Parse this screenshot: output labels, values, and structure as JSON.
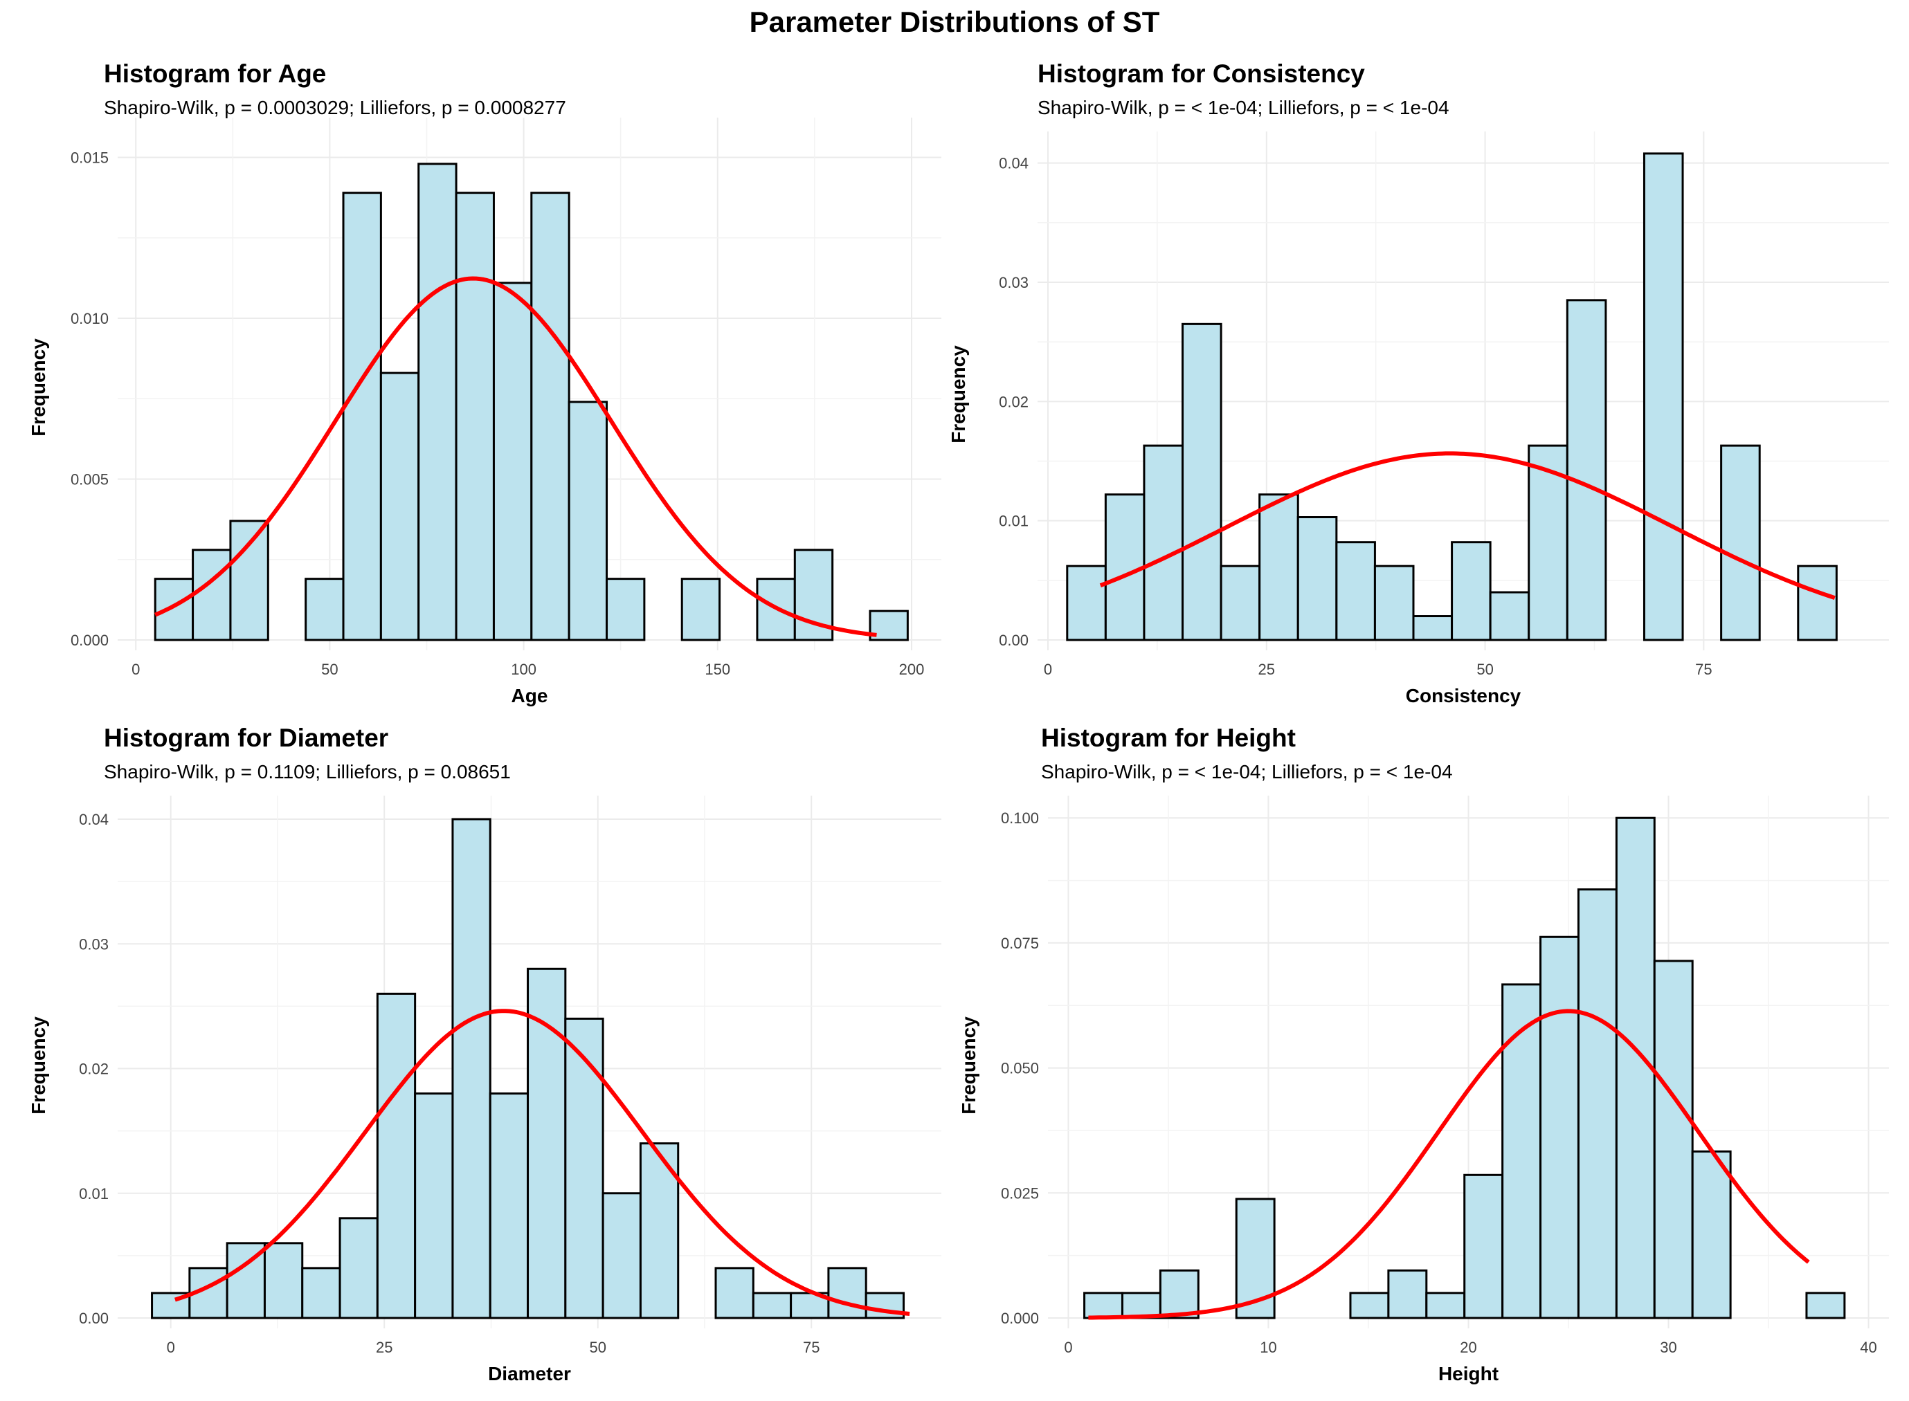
{
  "title": "Parameter Distributions of ST",
  "colors": {
    "bar_fill": "#bde3ee",
    "bar_stroke": "#000000",
    "curve": "#ff0000",
    "grid": "#ebebeb"
  },
  "chart_data": [
    {
      "type": "bar",
      "title": "Histogram for Age",
      "subtitle": "Shapiro-Wilk, p = 0.0003029; Lilliefors, p = 0.0008277",
      "xlabel": "Age",
      "ylabel": "Frequency",
      "xlim": [
        -2,
        205
      ],
      "ylim": [
        0,
        0.0157
      ],
      "xticks": [
        0,
        50,
        100,
        150,
        200
      ],
      "xtick_labels": [
        "0",
        "50",
        "100",
        "150",
        "200"
      ],
      "yticks": [
        0,
        0.005,
        0.01,
        0.015
      ],
      "ytick_labels": [
        "0.000",
        "0.005",
        "0.010",
        "0.015"
      ],
      "bin_start": 5,
      "bin_width": 9.7,
      "values": [
        0.0019,
        0.0028,
        0.0037,
        0,
        0.0019,
        0.0139,
        0.0083,
        0.0148,
        0.0139,
        0.0111,
        0.0139,
        0.0074,
        0.0019,
        0,
        0.0019,
        0,
        0.0019,
        0.0028,
        0,
        0.0009
      ],
      "curve": {
        "mean": 87,
        "sd": 35.5,
        "range": [
          5,
          191
        ]
      }
    },
    {
      "type": "bar",
      "title": "Histogram for Consistency",
      "subtitle": "Shapiro-Wilk, p = < 1e-04; Lilliefors, p = < 1e-04",
      "xlabel": "Consistency",
      "ylabel": "Frequency",
      "xlim": [
        0,
        95
      ],
      "ylim": [
        0,
        0.0412
      ],
      "xticks": [
        0,
        25,
        50,
        75
      ],
      "xtick_labels": [
        "0",
        "25",
        "50",
        "75"
      ],
      "yticks": [
        0,
        0.01,
        0.02,
        0.03,
        0.04
      ],
      "ytick_labels": [
        "0.00",
        "0.01",
        "0.02",
        "0.03",
        "0.04"
      ],
      "bin_start": 2.2,
      "bin_width": 4.4,
      "values": [
        0.0062,
        0.0122,
        0.0163,
        0.0265,
        0.0062,
        0.0122,
        0.0103,
        0.0082,
        0.0062,
        0.002,
        0.0082,
        0.004,
        0.0163,
        0.0285,
        0,
        0.0408,
        0,
        0.0163,
        0,
        0.0062
      ],
      "curve": {
        "mean": 46,
        "sd": 25.5,
        "range": [
          6,
          90
        ]
      }
    },
    {
      "type": "bar",
      "title": "Histogram for Diameter",
      "subtitle": "Shapiro-Wilk, p = 0.1109; Lilliefors, p = 0.08651",
      "xlabel": "Diameter",
      "ylabel": "Frequency",
      "xlim": [
        -5,
        89
      ],
      "ylim": [
        0,
        0.0405
      ],
      "xticks": [
        0,
        25,
        50,
        75
      ],
      "xtick_labels": [
        "0",
        "25",
        "50",
        "75"
      ],
      "yticks": [
        0,
        0.01,
        0.02,
        0.03,
        0.04
      ],
      "ytick_labels": [
        "0.00",
        "0.01",
        "0.02",
        "0.03",
        "0.04"
      ],
      "bin_start": -2.2,
      "bin_width": 4.4,
      "values": [
        0.002,
        0.004,
        0.006,
        0.006,
        0.004,
        0.008,
        0.026,
        0.018,
        0.04,
        0.018,
        0.028,
        0.024,
        0.01,
        0.014,
        0,
        0.004,
        0.002,
        0.002,
        0.004,
        0.002
      ],
      "curve": {
        "mean": 39,
        "sd": 16.2,
        "range": [
          0.5,
          86.5
        ]
      }
    },
    {
      "type": "bar",
      "title": "Histogram for Height",
      "subtitle": "Shapiro-Wilk, p = < 1e-04; Lilliefors, p = < 1e-04",
      "xlabel": "Height",
      "ylabel": "Frequency",
      "xlim": [
        -0.5,
        40.5
      ],
      "ylim": [
        0,
        0.101
      ],
      "xticks": [
        0,
        10,
        20,
        30,
        40
      ],
      "xtick_labels": [
        "0",
        "10",
        "20",
        "30",
        "40"
      ],
      "yticks": [
        0,
        0.025,
        0.05,
        0.075,
        0.1
      ],
      "ytick_labels": [
        "0.000",
        "0.025",
        "0.050",
        "0.075",
        "0.100"
      ],
      "bin_start": 0.8,
      "bin_width": 1.9,
      "values": [
        0.005,
        0.005,
        0.0095,
        0,
        0.0238,
        0,
        0,
        0.005,
        0.0095,
        0.005,
        0.0286,
        0.0667,
        0.0762,
        0.0857,
        0.1,
        0.0714,
        0.0333,
        0,
        0,
        0.005
      ],
      "curve": {
        "mean": 25,
        "sd": 6.5,
        "range": [
          1,
          37
        ]
      }
    }
  ]
}
